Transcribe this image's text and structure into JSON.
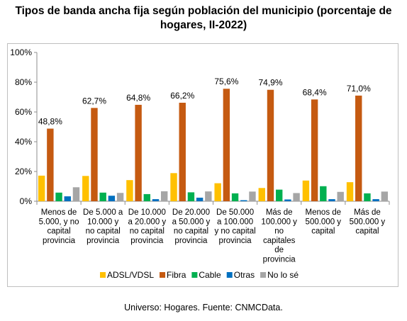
{
  "title_line1": "Tipos de banda ancha fija según población del municipio (porcentaje de",
  "title_line2": "hogares, II-2022)",
  "source": "Universo: Hogares. Fuente: CNMCData.",
  "chart_data": {
    "type": "bar",
    "title": "Tipos de banda ancha fija según población del municipio (porcentaje de hogares, II-2022)",
    "xlabel": "",
    "ylabel": "",
    "ylim": [
      0,
      100
    ],
    "yticks": [
      "0%",
      "20%",
      "40%",
      "60%",
      "80%",
      "100%"
    ],
    "grid": false,
    "legend_position": "bottom",
    "categories": [
      [
        "Menos de",
        "5.000, y no",
        "capital",
        "provincia"
      ],
      [
        "De 5.000 a",
        "10.000 y",
        "no capital",
        "provincia"
      ],
      [
        "De 10.000",
        "a 20.000 y",
        "no capital",
        "provincia"
      ],
      [
        "De 20.000",
        "a 50.000 y",
        "no capital",
        "provincia"
      ],
      [
        "De 50.000",
        "a 100.000",
        "y no capital",
        "provincia"
      ],
      [
        "Más de",
        "100.000 y",
        "no",
        "capitales",
        "de",
        "provincia"
      ],
      [
        "Menos de",
        "500.000 y",
        "capital"
      ],
      [
        "Más de",
        "500.000 y",
        "capital"
      ]
    ],
    "series": [
      {
        "name": "ADSL/VDSL",
        "color": "#ffc000",
        "values": [
          17.2,
          17.0,
          14.2,
          18.9,
          12.1,
          8.9,
          13.9,
          12.8
        ]
      },
      {
        "name": "Fibra",
        "color": "#c55a11",
        "values": [
          48.8,
          62.7,
          64.8,
          66.2,
          75.6,
          74.9,
          68.4,
          71.0
        ],
        "labels": [
          "48,8%",
          "62,7%",
          "64,8%",
          "66,2%",
          "75,6%",
          "74,9%",
          "68,4%",
          "71,0%"
        ]
      },
      {
        "name": "Cable",
        "color": "#00b050",
        "values": [
          5.8,
          5.8,
          4.8,
          6.0,
          5.3,
          7.8,
          10.1,
          5.3
        ]
      },
      {
        "name": "Otras",
        "color": "#0070c0",
        "values": [
          3.3,
          3.7,
          1.4,
          2.4,
          0.7,
          1.2,
          1.4,
          1.4
        ]
      },
      {
        "name": "No lo sé",
        "color": "#a6a6a6",
        "values": [
          9.4,
          5.6,
          6.7,
          6.6,
          6.5,
          5.5,
          6.3,
          6.5
        ]
      }
    ]
  }
}
